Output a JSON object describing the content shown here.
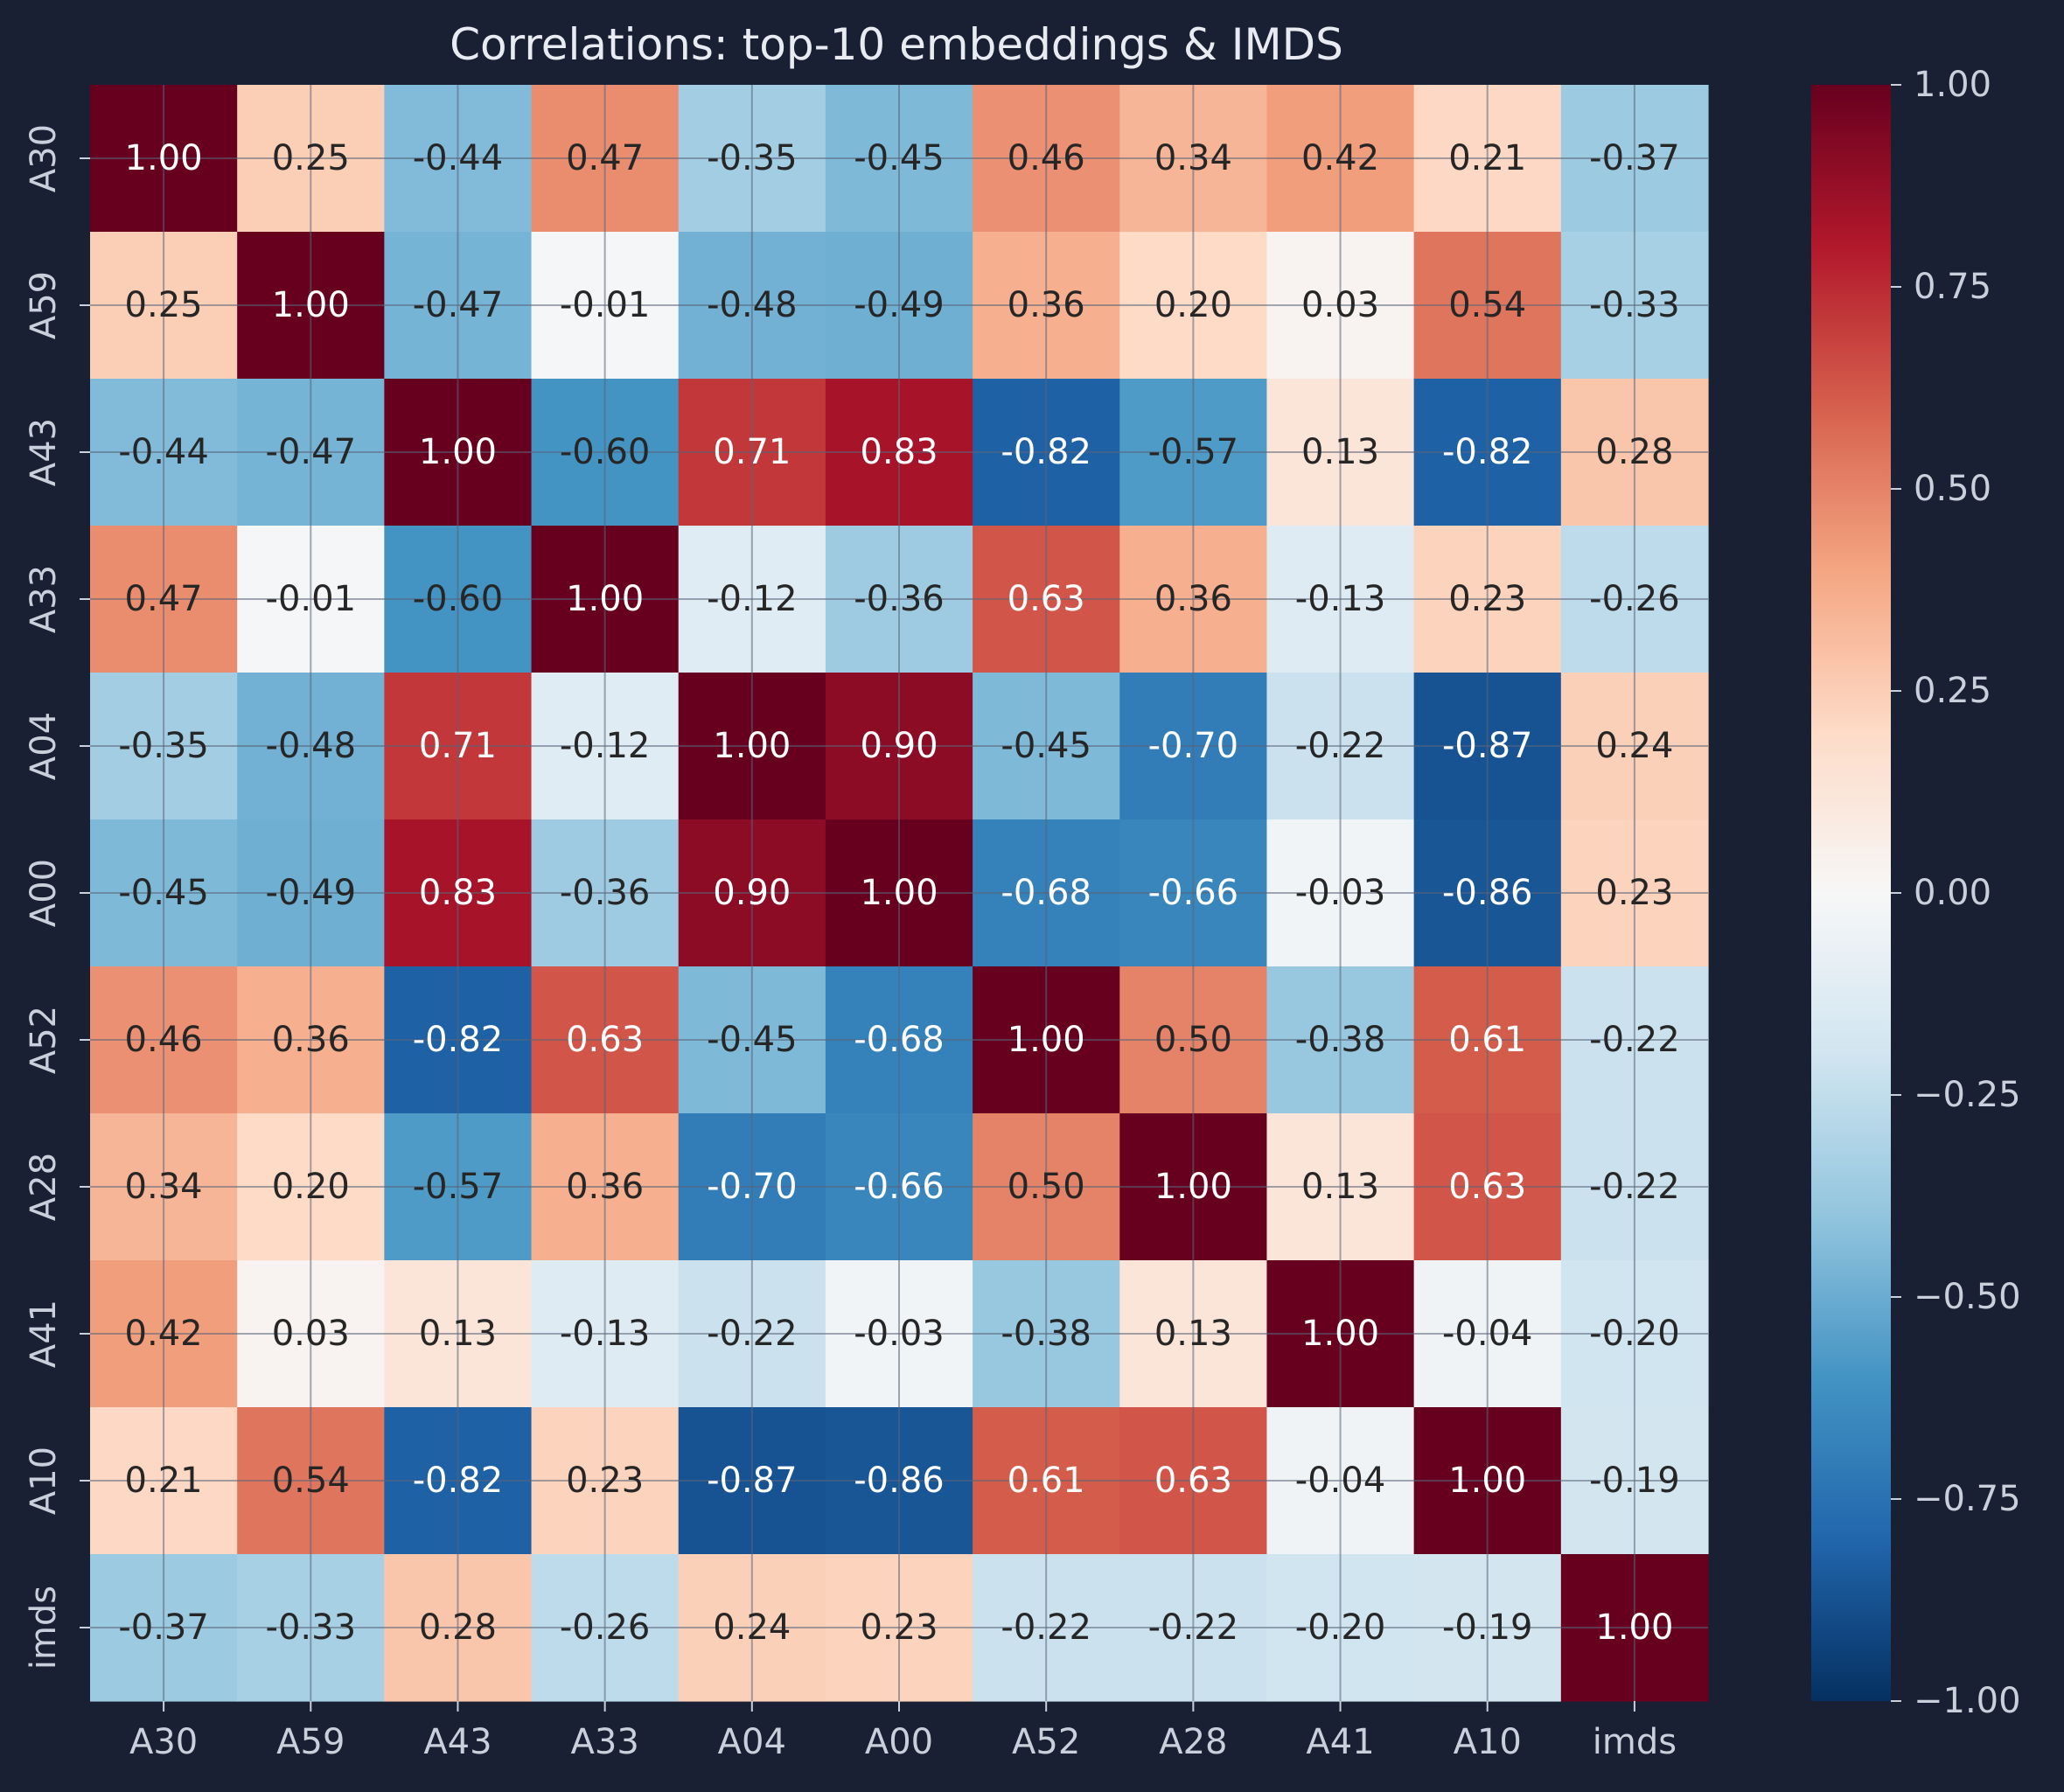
{
  "chart_data": {
    "type": "heatmap",
    "title": "Correlations: top-10 embeddings & IMDS",
    "xlabel": "",
    "ylabel": "",
    "colormap": "RdBu_r",
    "vmin": -1.0,
    "vmax": 1.0,
    "grid": true,
    "colorbar_ticks": [
      "1.00",
      "0.75",
      "0.50",
      "0.25",
      "0.00",
      "−0.25",
      "−0.50",
      "−0.75",
      "−1.00"
    ],
    "colorbar_tick_values": [
      1.0,
      0.75,
      0.5,
      0.25,
      0.0,
      -0.25,
      -0.5,
      -0.75,
      -1.0
    ],
    "x_labels": [
      "A30",
      "A59",
      "A43",
      "A33",
      "A04",
      "A00",
      "A52",
      "A28",
      "A41",
      "A10",
      "imds"
    ],
    "y_labels": [
      "A30",
      "A59",
      "A43",
      "A33",
      "A04",
      "A00",
      "A52",
      "A28",
      "A41",
      "A10",
      "imds"
    ],
    "values": [
      [
        1.0,
        0.25,
        -0.44,
        0.47,
        -0.35,
        -0.45,
        0.46,
        0.34,
        0.42,
        0.21,
        -0.37
      ],
      [
        0.25,
        1.0,
        -0.47,
        -0.01,
        -0.48,
        -0.49,
        0.36,
        0.2,
        0.03,
        0.54,
        -0.33
      ],
      [
        -0.44,
        -0.47,
        1.0,
        -0.6,
        0.71,
        0.83,
        -0.82,
        -0.57,
        0.13,
        -0.82,
        0.28
      ],
      [
        0.47,
        -0.01,
        -0.6,
        1.0,
        -0.12,
        -0.36,
        0.63,
        0.36,
        -0.13,
        0.23,
        -0.26
      ],
      [
        -0.35,
        -0.48,
        0.71,
        -0.12,
        1.0,
        0.9,
        -0.45,
        -0.7,
        -0.22,
        -0.87,
        0.24
      ],
      [
        -0.45,
        -0.49,
        0.83,
        -0.36,
        0.9,
        1.0,
        -0.68,
        -0.66,
        -0.03,
        -0.86,
        0.23
      ],
      [
        0.46,
        0.36,
        -0.82,
        0.63,
        -0.45,
        -0.68,
        1.0,
        0.5,
        -0.38,
        0.61,
        -0.22
      ],
      [
        0.34,
        0.2,
        -0.57,
        0.36,
        -0.7,
        -0.66,
        0.5,
        1.0,
        0.13,
        0.63,
        -0.22
      ],
      [
        0.42,
        0.03,
        0.13,
        -0.13,
        -0.22,
        -0.03,
        -0.38,
        0.13,
        1.0,
        -0.04,
        -0.2
      ],
      [
        0.21,
        0.54,
        -0.82,
        0.23,
        -0.87,
        -0.86,
        0.61,
        0.63,
        -0.04,
        1.0,
        -0.19
      ],
      [
        -0.37,
        -0.33,
        0.28,
        -0.26,
        0.24,
        0.23,
        -0.22,
        -0.22,
        -0.2,
        -0.19,
        1.0
      ]
    ]
  }
}
